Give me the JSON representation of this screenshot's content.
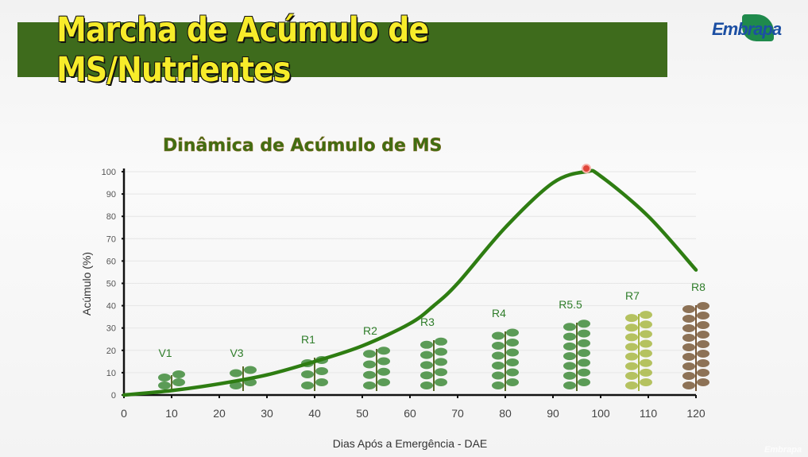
{
  "slide": {
    "title": "Marcha de Acúmulo de MS/Nutrientes",
    "logo": "Embrapa",
    "footer_logo": "Embrapa"
  },
  "chart_data": {
    "type": "line",
    "title": "Dinâmica de Acúmulo de MS",
    "xlabel": "Dias Após a Emergência - DAE",
    "ylabel": "Acúmulo (%)",
    "xlim": [
      0,
      120
    ],
    "ylim": [
      0,
      100
    ],
    "xticks": [
      0,
      10,
      20,
      30,
      40,
      50,
      60,
      70,
      80,
      90,
      100,
      110,
      120
    ],
    "yticks": [
      0,
      10,
      20,
      30,
      40,
      50,
      60,
      70,
      80,
      90,
      100
    ],
    "grid": true,
    "series": [
      {
        "name": "Acúmulo de MS",
        "color": "#2e7d12",
        "x": [
          0,
          10,
          20,
          30,
          40,
          50,
          60,
          65,
          70,
          80,
          90,
          97,
          100,
          110,
          120
        ],
        "y": [
          0,
          2,
          5,
          9,
          15,
          22,
          32,
          40,
          50,
          75,
          95,
          100,
          98,
          80,
          56
        ]
      }
    ],
    "peak_marker": {
      "x": 97,
      "y": 100,
      "color": "#e0453a"
    },
    "stages": [
      {
        "label": "V1",
        "x": 10
      },
      {
        "label": "V3",
        "x": 25
      },
      {
        "label": "R1",
        "x": 40
      },
      {
        "label": "R2",
        "x": 53
      },
      {
        "label": "R3",
        "x": 65
      },
      {
        "label": "R4",
        "x": 80
      },
      {
        "label": "R5.5",
        "x": 95
      },
      {
        "label": "R7",
        "x": 108
      },
      {
        "label": "R8",
        "x": 120
      }
    ]
  }
}
